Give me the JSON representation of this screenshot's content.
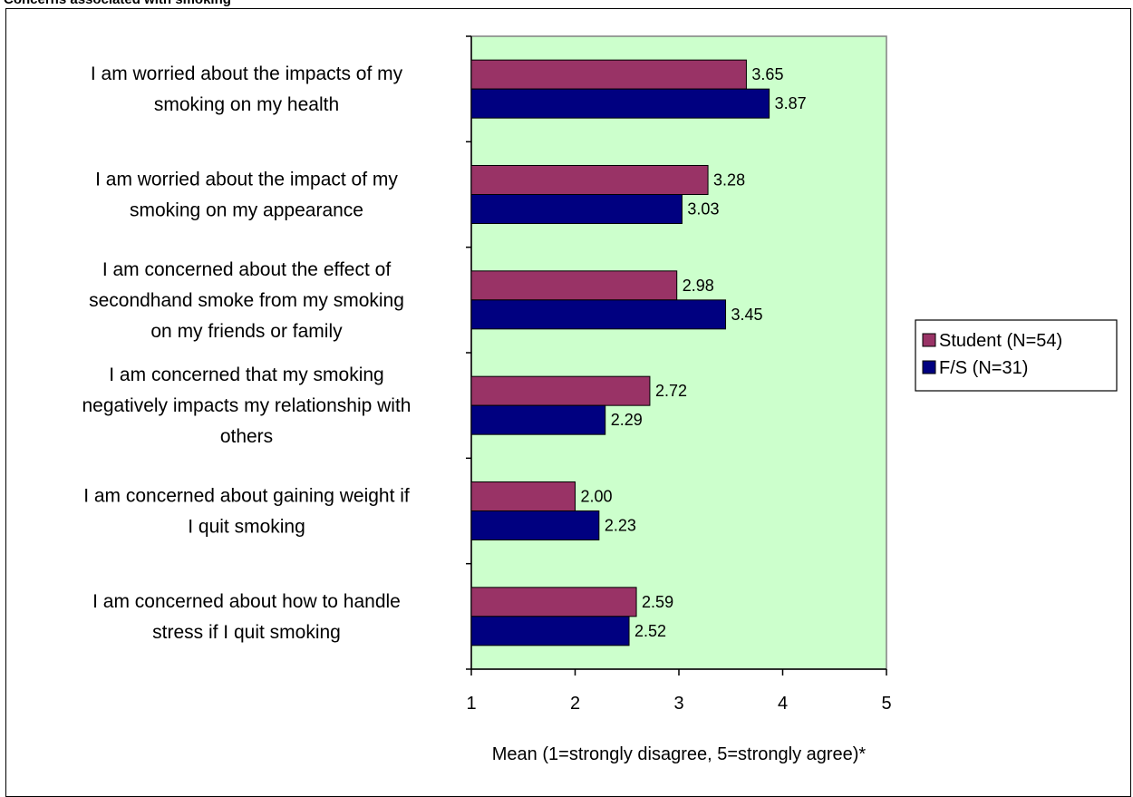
{
  "header": {
    "title": "Concerns associated with smoking"
  },
  "chart_data": {
    "type": "bar",
    "orientation": "horizontal",
    "categories": [
      [
        "I am worried about the impacts of my",
        "smoking on my health"
      ],
      [
        "I am worried about the impact of my",
        "smoking on my appearance"
      ],
      [
        "I am concerned about the effect of",
        "secondhand smoke from my smoking",
        "on my friends or family"
      ],
      [
        "I am concerned that my smoking",
        "negatively impacts my relationship with",
        "others"
      ],
      [
        "I am concerned about gaining weight if",
        "I quit smoking"
      ],
      [
        "I am concerned about how to handle",
        "stress if I quit smoking"
      ]
    ],
    "series": [
      {
        "name": "Student (N=54)",
        "color": "#993366",
        "values": [
          3.65,
          3.28,
          2.98,
          2.72,
          2.0,
          2.59
        ],
        "labels": [
          "3.65",
          "3.28",
          "2.98",
          "2.72",
          "2.00",
          "2.59"
        ]
      },
      {
        "name": "F/S (N=31)",
        "color": "#000080",
        "values": [
          3.87,
          3.03,
          3.45,
          2.29,
          2.23,
          2.52
        ],
        "labels": [
          "3.87",
          "3.03",
          "3.45",
          "2.29",
          "2.23",
          "2.52"
        ]
      }
    ],
    "xlabel": "Mean (1=strongly disagree, 5=strongly agree)*",
    "xlim": [
      1,
      5
    ],
    "xticks": [
      "1",
      "2",
      "3",
      "4",
      "5"
    ],
    "plot_background": "#ccffcc",
    "grid": false,
    "legend_position": "right"
  }
}
